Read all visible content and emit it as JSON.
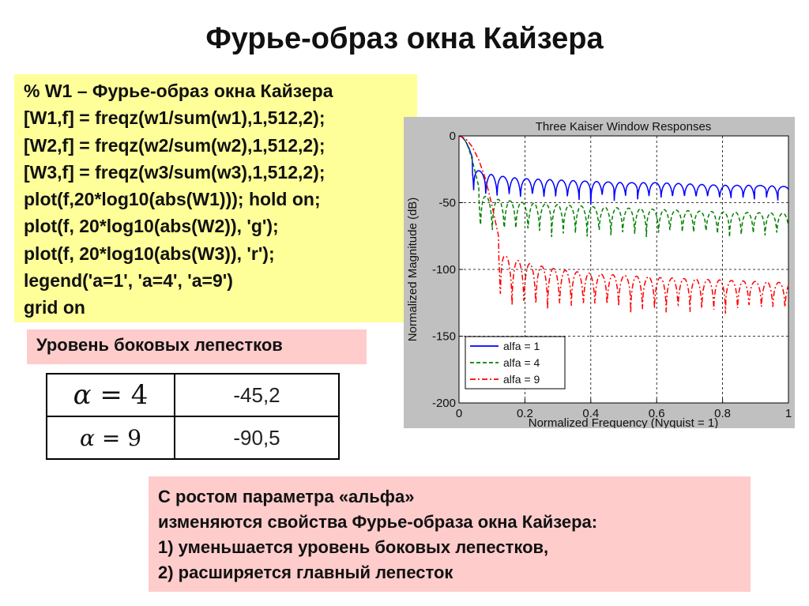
{
  "title": "Фурье-образ окна Кайзера",
  "code_lines": [
    "% W1 – Фурье-образ окна Кайзера",
    "[W1,f] = freqz(w1/sum(w1),1,512,2);",
    "[W2,f] = freqz(w2/sum(w2),1,512,2);",
    "[W3,f] = freqz(w3/sum(w3),1,512,2);",
    "plot(f,20*log10(abs(W1))); hold on;",
    "plot(f, 20*log10(abs(W2)), 'g');",
    "plot(f, 20*log10(abs(W3)), 'r');",
    "legend('a=1', 'a=4', 'a=9')",
    "grid on"
  ],
  "sidelobe_label": "Уровень боковых лепестков",
  "sidelobe_table": [
    {
      "alpha_symbol": "α",
      "equals": "=",
      "alpha_value": "4",
      "level": "-45,2"
    },
    {
      "alpha_symbol": "α",
      "equals": "=",
      "alpha_value": "9",
      "level": "-90,5"
    }
  ],
  "summary_lines": [
    "С ростом параметра «альфа»",
    "изменяются свойства Фурье-образа окна Кайзера:",
    "1)  уменьшается уровень боковых лепестков,",
    "2)  расширяется главный лепесток"
  ],
  "chart_data": {
    "type": "line",
    "title": "Three Kaiser Window Responses",
    "xlabel": "Normalized Frequency (Nyquist = 1)",
    "ylabel": "Normalized Magnitude (dB)",
    "xlim": [
      0,
      1
    ],
    "ylim": [
      -200,
      0
    ],
    "x_ticks": [
      0,
      0.2,
      0.4,
      0.6,
      0.8,
      1
    ],
    "x_tick_labels": [
      "0",
      "0.2",
      "0.4",
      "0.6",
      "0.8",
      "1"
    ],
    "y_ticks": [
      0,
      -50,
      -100,
      -150,
      -200
    ],
    "y_tick_labels": [
      "0",
      "-50",
      "-100",
      "-150",
      "-200"
    ],
    "grid": true,
    "legend_position": "bottom-left",
    "series": [
      {
        "name": "alfa = 1",
        "color": "#0000ff",
        "style": "solid",
        "mainlobe_end": 0.04,
        "first_null": 0.045,
        "sidelobe_spacing": 0.0355,
        "peak_start": -26,
        "peak_end": -38,
        "null_depth": -42,
        "envelope_x": [
          0.0,
          0.01,
          0.02,
          0.03,
          0.04,
          0.05,
          0.06,
          0.08,
          0.1,
          0.15,
          0.2,
          0.3,
          0.4,
          0.5,
          0.6,
          0.7,
          0.8,
          0.9,
          1.0
        ],
        "envelope_y": [
          0,
          -1,
          -4,
          -9,
          -16,
          -24,
          -26,
          -28,
          -29,
          -31,
          -32,
          -33,
          -34,
          -35,
          -35,
          -36,
          -37,
          -37,
          -38
        ]
      },
      {
        "name": "alfa = 4",
        "color": "#008000",
        "style": "dashed",
        "mainlobe_end": 0.06,
        "first_null": 0.065,
        "sidelobe_spacing": 0.036,
        "peak_start": -45,
        "peak_end": -58,
        "null_depth": -72,
        "envelope_x": [
          0.0,
          0.01,
          0.02,
          0.03,
          0.04,
          0.05,
          0.06,
          0.08,
          0.1,
          0.2,
          0.4,
          0.6,
          0.8,
          1.0
        ],
        "envelope_y": [
          0,
          -1,
          -4,
          -10,
          -18,
          -28,
          -38,
          -45,
          -47,
          -50,
          -53,
          -55,
          -57,
          -58
        ]
      },
      {
        "name": "alfa = 9",
        "color": "#ff0000",
        "style": "dashdot",
        "mainlobe_end": 0.12,
        "first_null": 0.125,
        "sidelobe_spacing": 0.036,
        "peak_start": -90,
        "peak_end": -110,
        "null_depth": -130,
        "envelope_x": [
          0.0,
          0.02,
          0.04,
          0.06,
          0.08,
          0.1,
          0.12,
          0.14,
          0.2,
          0.3,
          0.4,
          0.6,
          0.8,
          1.0
        ],
        "envelope_y": [
          0,
          -2,
          -8,
          -18,
          -32,
          -52,
          -75,
          -90,
          -95,
          -100,
          -103,
          -106,
          -108,
          -110
        ]
      }
    ]
  }
}
